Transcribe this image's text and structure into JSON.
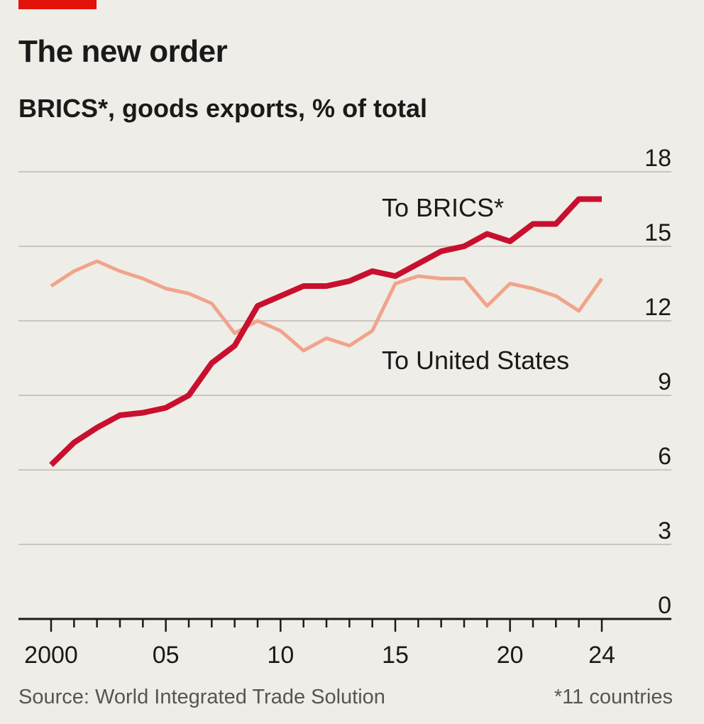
{
  "chart_data": {
    "type": "line",
    "title": "The new order",
    "subtitle": "BRICS*, goods exports, % of total",
    "x": [
      2000,
      2001,
      2002,
      2003,
      2004,
      2005,
      2006,
      2007,
      2008,
      2009,
      2010,
      2011,
      2012,
      2013,
      2014,
      2015,
      2016,
      2017,
      2018,
      2019,
      2020,
      2021,
      2022,
      2023,
      2024
    ],
    "xticks": [
      2000,
      2005,
      2010,
      2015,
      2020,
      2024
    ],
    "xtick_labels": [
      "2000",
      "05",
      "10",
      "15",
      "20",
      "24"
    ],
    "yticks": [
      0,
      3,
      6,
      9,
      12,
      15,
      18
    ],
    "ytick_labels": [
      "0",
      "3",
      "6",
      "9",
      "12",
      "15",
      "18"
    ],
    "ylim": [
      0,
      18
    ],
    "series": [
      {
        "name": "To BRICS*",
        "label": "To BRICS*",
        "color": "#c8102e",
        "values": [
          6.2,
          7.1,
          7.7,
          8.2,
          8.3,
          8.5,
          9.0,
          10.3,
          11.0,
          12.6,
          13.0,
          13.4,
          13.4,
          13.6,
          14.0,
          13.8,
          14.3,
          14.8,
          15.0,
          15.5,
          15.2,
          15.9,
          15.9,
          16.9,
          16.9
        ]
      },
      {
        "name": "To United States",
        "label": "To United States",
        "color": "#f0a48c",
        "values": [
          13.4,
          14.0,
          14.4,
          14.0,
          13.7,
          13.3,
          13.1,
          12.7,
          11.5,
          12.0,
          11.6,
          10.8,
          11.3,
          11.0,
          11.6,
          13.5,
          13.8,
          13.7,
          13.7,
          12.6,
          13.5,
          13.3,
          13.0,
          12.4,
          13.7
        ]
      }
    ]
  },
  "footer": {
    "source": "Source: World Integrated Trade Solution",
    "note": "*11 countries"
  },
  "colors": {
    "accent": "#e3120b",
    "background": "#efede7",
    "gridline": "#c9c6be"
  }
}
